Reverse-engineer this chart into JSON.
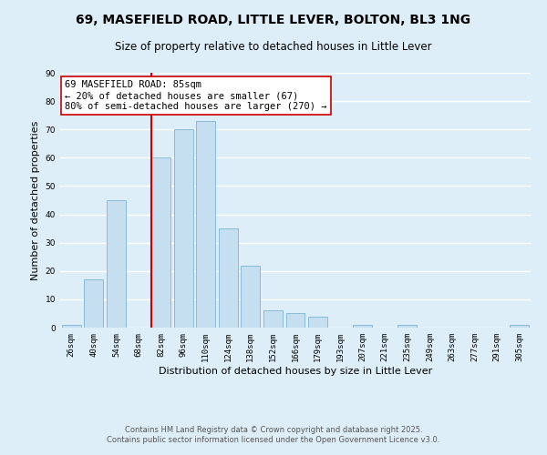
{
  "title": "69, MASEFIELD ROAD, LITTLE LEVER, BOLTON, BL3 1NG",
  "subtitle": "Size of property relative to detached houses in Little Lever",
  "xlabel": "Distribution of detached houses by size in Little Lever",
  "ylabel": "Number of detached properties",
  "bar_color": "#c6dff0",
  "bar_edge_color": "#7ab4d4",
  "background_color": "#deeef8",
  "grid_color": "#ffffff",
  "categories": [
    "26sqm",
    "40sqm",
    "54sqm",
    "68sqm",
    "82sqm",
    "96sqm",
    "110sqm",
    "124sqm",
    "138sqm",
    "152sqm",
    "166sqm",
    "179sqm",
    "193sqm",
    "207sqm",
    "221sqm",
    "235sqm",
    "249sqm",
    "263sqm",
    "277sqm",
    "291sqm",
    "305sqm"
  ],
  "values": [
    1,
    17,
    45,
    0,
    60,
    70,
    73,
    35,
    22,
    6,
    5,
    4,
    0,
    1,
    0,
    1,
    0,
    0,
    0,
    0,
    1
  ],
  "ylim": [
    0,
    90
  ],
  "yticks": [
    0,
    10,
    20,
    30,
    40,
    50,
    60,
    70,
    80,
    90
  ],
  "vline_index": 4,
  "vline_color": "#cc0000",
  "annotation_text": "69 MASEFIELD ROAD: 85sqm\n← 20% of detached houses are smaller (67)\n80% of semi-detached houses are larger (270) →",
  "annotation_box_color": "#ffffff",
  "annotation_box_edge": "#cc0000",
  "footer_line1": "Contains HM Land Registry data © Crown copyright and database right 2025.",
  "footer_line2": "Contains public sector information licensed under the Open Government Licence v3.0.",
  "title_fontsize": 10,
  "subtitle_fontsize": 8.5,
  "label_fontsize": 8,
  "tick_fontsize": 6.5,
  "annotation_fontsize": 7.5,
  "footer_fontsize": 6
}
